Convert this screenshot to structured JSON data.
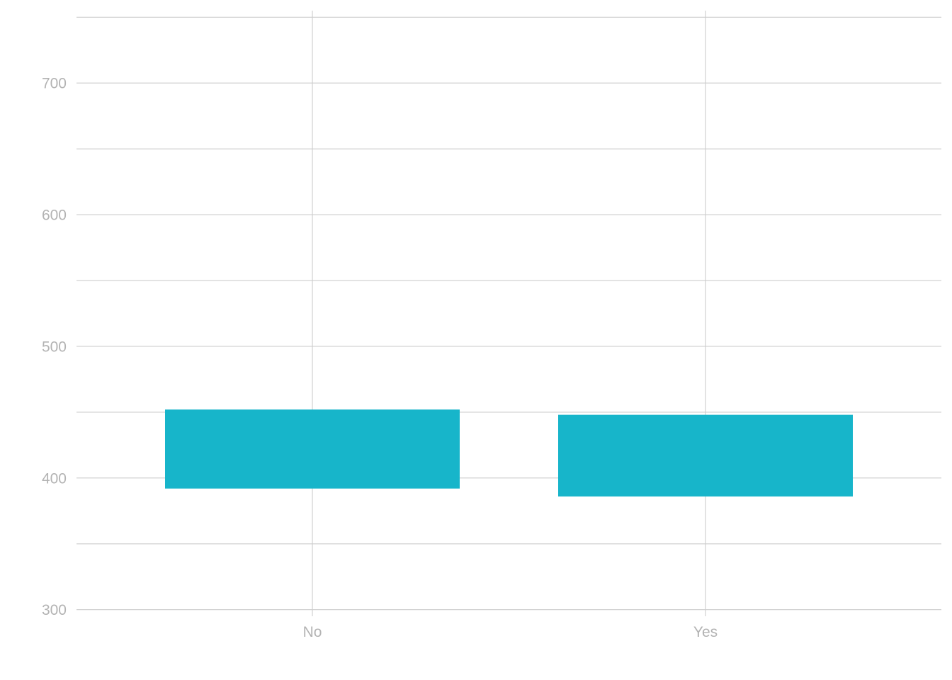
{
  "chart_data": {
    "type": "bar",
    "style": "floating-range",
    "categories": [
      "No",
      "Yes"
    ],
    "series": [
      {
        "ranges": [
          [
            392,
            452
          ],
          [
            386,
            448
          ]
        ]
      }
    ],
    "ylim": [
      295,
      755
    ],
    "yticks": [
      300,
      400,
      500,
      600,
      700
    ],
    "yticks_minor": [
      350,
      450,
      550,
      650,
      750
    ],
    "grid": true,
    "legend": "none",
    "title": "",
    "xlabel": "",
    "ylabel": "",
    "bar_color": "#17b5ca",
    "grid_color": "#cccccc",
    "label_color": "#b3b3b3"
  }
}
